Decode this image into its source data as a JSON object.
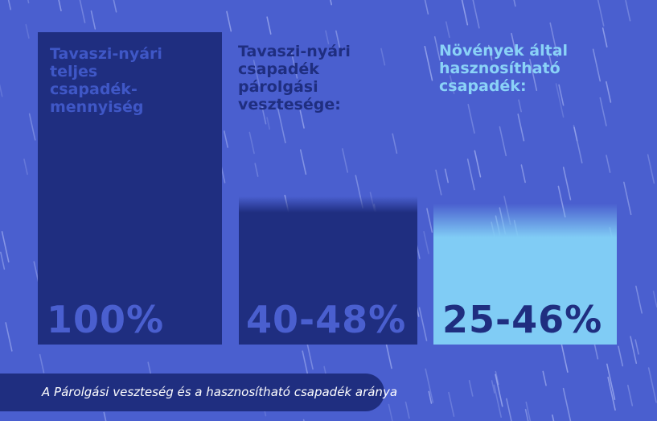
{
  "chart_data": {
    "type": "bar",
    "categories": [
      "Tavaszi-nyári\nteljes\ncsapadék-\nmennyiség",
      "Tavaszi-nyári\ncsapadék\npárolgási\nvesztesége:",
      "Növények által\nhasznosítható\ncsapadék:"
    ],
    "values": [
      100,
      48,
      46
    ],
    "value_labels": [
      "100%",
      "40-48%",
      "25-46%"
    ],
    "ylim": [
      0,
      100
    ],
    "grid": false,
    "colors": [
      "#1f2e80",
      "#1f2e80",
      "#80ccf5"
    ],
    "caption": "A Párolgási veszteség és a hasznosítható csapadék aránya"
  },
  "colors": {
    "background": "#4a5fcf",
    "navy": "#1f2e80",
    "light_blue": "#80ccf5"
  }
}
